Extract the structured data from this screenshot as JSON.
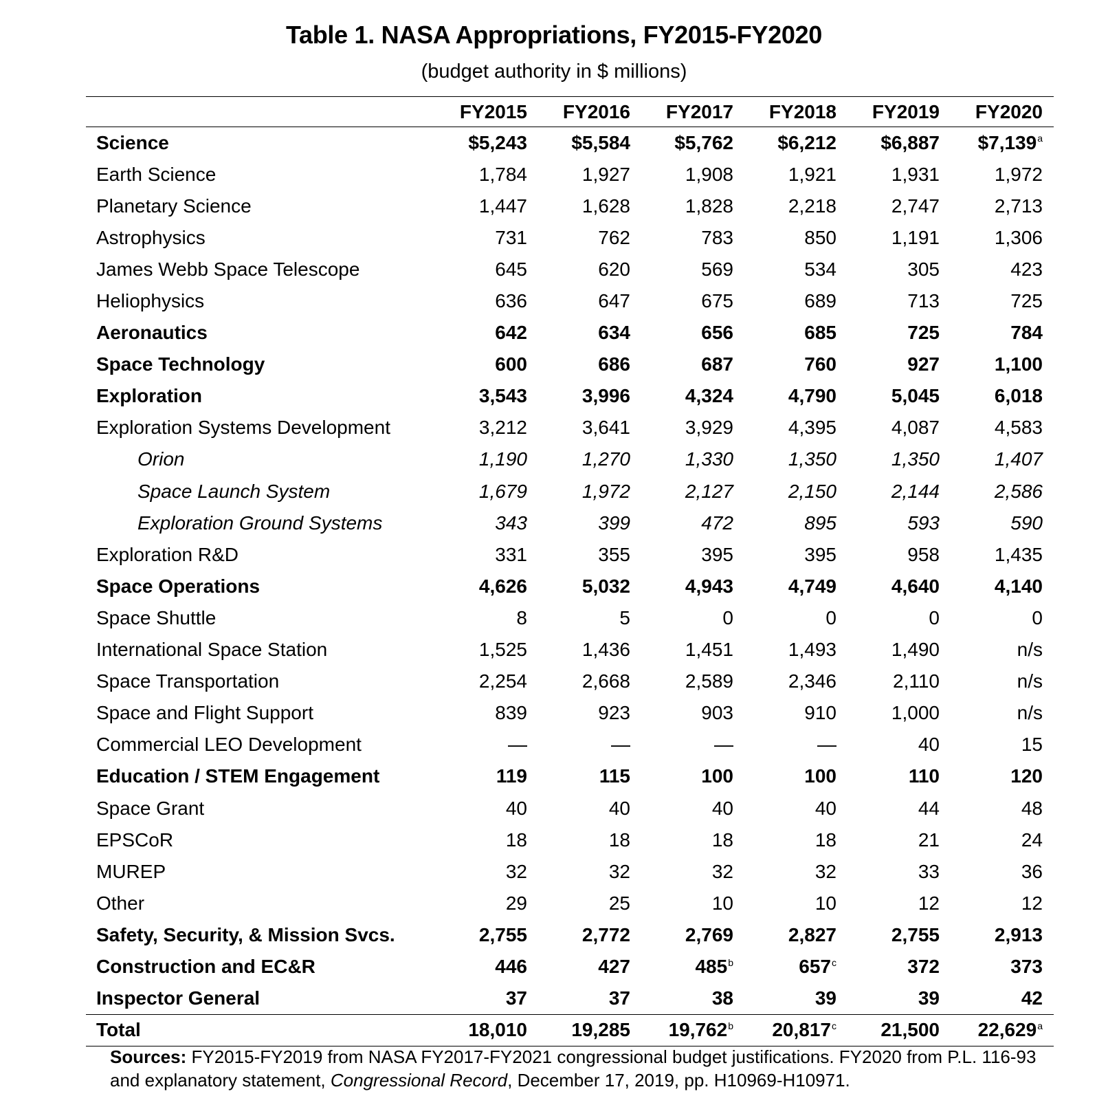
{
  "title": "Table 1. NASA Appropriations, FY2015-FY2020",
  "subtitle": "(budget authority in $ millions)",
  "columns": [
    "FY2015",
    "FY2016",
    "FY2017",
    "FY2018",
    "FY2019",
    "FY2020"
  ],
  "rows": [
    {
      "label": "Science",
      "style": "bold",
      "values": [
        "$5,243",
        "$5,584",
        "$5,762",
        "$6,212",
        "$6,887",
        "$7,139"
      ],
      "notes": [
        "",
        "",
        "",
        "",
        "",
        "a"
      ]
    },
    {
      "label": "Earth Science",
      "style": "normal",
      "values": [
        "1,784",
        "1,927",
        "1,908",
        "1,921",
        "1,931",
        "1,972"
      ]
    },
    {
      "label": "Planetary Science",
      "style": "normal",
      "values": [
        "1,447",
        "1,628",
        "1,828",
        "2,218",
        "2,747",
        "2,713"
      ]
    },
    {
      "label": "Astrophysics",
      "style": "normal",
      "values": [
        "731",
        "762",
        "783",
        "850",
        "1,191",
        "1,306"
      ]
    },
    {
      "label": "James Webb Space Telescope",
      "style": "normal",
      "values": [
        "645",
        "620",
        "569",
        "534",
        "305",
        "423"
      ]
    },
    {
      "label": "Heliophysics",
      "style": "normal",
      "values": [
        "636",
        "647",
        "675",
        "689",
        "713",
        "725"
      ]
    },
    {
      "label": "Aeronautics",
      "style": "bold",
      "values": [
        "642",
        "634",
        "656",
        "685",
        "725",
        "784"
      ]
    },
    {
      "label": "Space Technology",
      "style": "bold",
      "values": [
        "600",
        "686",
        "687",
        "760",
        "927",
        "1,100"
      ]
    },
    {
      "label": "Exploration",
      "style": "bold",
      "values": [
        "3,543",
        "3,996",
        "4,324",
        "4,790",
        "5,045",
        "6,018"
      ]
    },
    {
      "label": "Exploration Systems Development",
      "style": "normal",
      "values": [
        "3,212",
        "3,641",
        "3,929",
        "4,395",
        "4,087",
        "4,583"
      ]
    },
    {
      "label": "Orion",
      "style": "italic",
      "values": [
        "1,190",
        "1,270",
        "1,330",
        "1,350",
        "1,350",
        "1,407"
      ]
    },
    {
      "label": "Space Launch System",
      "style": "italic",
      "values": [
        "1,679",
        "1,972",
        "2,127",
        "2,150",
        "2,144",
        "2,586"
      ]
    },
    {
      "label": "Exploration Ground Systems",
      "style": "italic",
      "values": [
        "343",
        "399",
        "472",
        "895",
        "593",
        "590"
      ]
    },
    {
      "label": "Exploration R&D",
      "style": "normal",
      "values": [
        "331",
        "355",
        "395",
        "395",
        "958",
        "1,435"
      ]
    },
    {
      "label": "Space Operations",
      "style": "bold",
      "values": [
        "4,626",
        "5,032",
        "4,943",
        "4,749",
        "4,640",
        "4,140"
      ]
    },
    {
      "label": "Space Shuttle",
      "style": "normal",
      "values": [
        "8",
        "5",
        "0",
        "0",
        "0",
        "0"
      ]
    },
    {
      "label": "International Space Station",
      "style": "normal",
      "values": [
        "1,525",
        "1,436",
        "1,451",
        "1,493",
        "1,490",
        "n/s"
      ]
    },
    {
      "label": "Space Transportation",
      "style": "normal",
      "values": [
        "2,254",
        "2,668",
        "2,589",
        "2,346",
        "2,110",
        "n/s"
      ]
    },
    {
      "label": "Space and Flight Support",
      "style": "normal",
      "values": [
        "839",
        "923",
        "903",
        "910",
        "1,000",
        "n/s"
      ]
    },
    {
      "label": "Commercial LEO Development",
      "style": "normal",
      "values": [
        "—",
        "—",
        "—",
        "—",
        "40",
        "15"
      ]
    },
    {
      "label": "Education / STEM Engagement",
      "style": "bold",
      "values": [
        "119",
        "115",
        "100",
        "100",
        "110",
        "120"
      ]
    },
    {
      "label": "Space Grant",
      "style": "normal",
      "values": [
        "40",
        "40",
        "40",
        "40",
        "44",
        "48"
      ]
    },
    {
      "label": "EPSCoR",
      "style": "normal",
      "values": [
        "18",
        "18",
        "18",
        "18",
        "21",
        "24"
      ]
    },
    {
      "label": "MUREP",
      "style": "normal",
      "values": [
        "32",
        "32",
        "32",
        "32",
        "33",
        "36"
      ]
    },
    {
      "label": "Other",
      "style": "normal",
      "values": [
        "29",
        "25",
        "10",
        "10",
        "12",
        "12"
      ]
    },
    {
      "label": "Safety, Security, & Mission Svcs.",
      "style": "bold",
      "values": [
        "2,755",
        "2,772",
        "2,769",
        "2,827",
        "2,755",
        "2,913"
      ]
    },
    {
      "label": "Construction and EC&R",
      "style": "bold",
      "values": [
        "446",
        "427",
        "485",
        "657",
        "372",
        "373"
      ],
      "notes": [
        "",
        "",
        "b",
        "c",
        "",
        ""
      ]
    },
    {
      "label": "Inspector General",
      "style": "bold",
      "values": [
        "37",
        "37",
        "38",
        "39",
        "39",
        "42"
      ]
    },
    {
      "label": "Total",
      "style": "total",
      "values": [
        "18,010",
        "19,285",
        "19,762",
        "20,817",
        "21,500",
        "22,629"
      ],
      "notes": [
        "",
        "",
        "b",
        "c",
        "",
        "a"
      ]
    }
  ],
  "sources": {
    "label": "Sources:",
    "text_1": "FY2015-FY2019 from NASA FY2017-FY2021 congressional budget justifications. FY2020 from P.L. 116-93 and explanatory statement,",
    "italic": "Congressional Record",
    "text_2": ", December 17, 2019, pp. H10969-H10971."
  }
}
